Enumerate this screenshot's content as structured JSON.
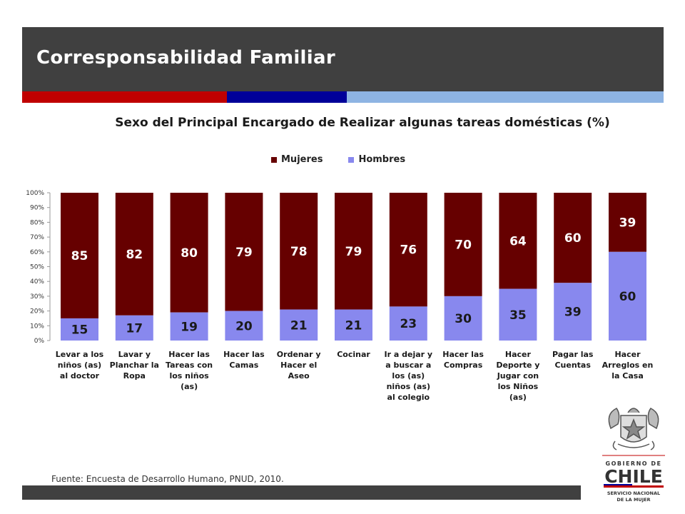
{
  "header": {
    "title": "Corresponsabilidad Familiar"
  },
  "colors": {
    "header_bg": "#404040",
    "stripe_red": "#c00000",
    "stripe_blue": "#000099",
    "stripe_light": "#8eb4e3",
    "mujeres": "#660000",
    "hombres": "#8888ee"
  },
  "chart_data": {
    "type": "bar",
    "stacked": true,
    "title": "Sexo del Principal Encargado de Realizar algunas tareas domésticas (%)",
    "legend_position": "top",
    "categories": [
      "Levar a los niños (as) al doctor",
      "Lavar y Planchar la Ropa",
      "Hacer las Tareas con los niños (as)",
      "Hacer las Camas",
      "Ordenar y Hacer el Aseo",
      "Cocinar",
      "Ir a dejar y a buscar a los (as) niños (as) al colegio",
      "Hacer las Compras",
      "Hacer Deporte y Jugar con los Niños (as)",
      "Pagar las Cuentas",
      "Hacer Arreglos en la Casa"
    ],
    "series": [
      {
        "name": "Hombres",
        "values": [
          15,
          17,
          19,
          20,
          21,
          21,
          23,
          30,
          35,
          39,
          60
        ]
      },
      {
        "name": "Mujeres",
        "values": [
          85,
          82,
          80,
          79,
          78,
          79,
          76,
          70,
          64,
          60,
          39
        ]
      }
    ],
    "ylim": [
      0,
      100
    ],
    "yticks": [
      "0%",
      "10%",
      "20%",
      "30%",
      "40%",
      "50%",
      "60%",
      "70%",
      "80%",
      "90%",
      "100%"
    ],
    "grid": false
  },
  "legend": {
    "mujeres": "Mujeres",
    "hombres": "Hombres"
  },
  "source": "Fuente: Encuesta de Desarrollo Humano, PNUD, 2010.",
  "logo": {
    "line1": "GOBIERNO DE",
    "line2": "CHILE",
    "line3": "SERVICIO NACIONAL",
    "line4": "DE LA MUJER"
  }
}
